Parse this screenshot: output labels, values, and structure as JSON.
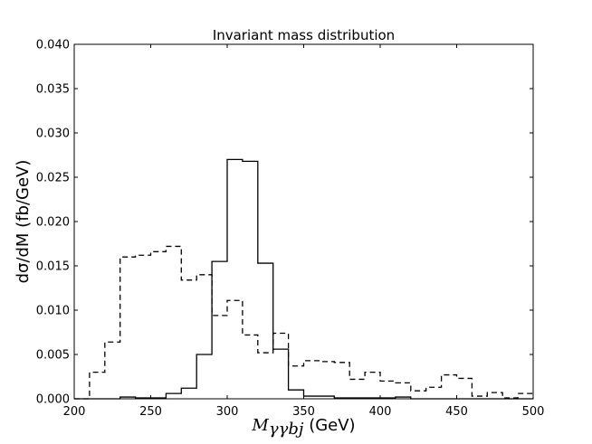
{
  "chart_data": {
    "type": "line",
    "style": "step-histogram",
    "title": "Invariant mass distribution",
    "xlabel_math": "M",
    "xlabel_subscript": "γγbj",
    "xlabel_unit": " (GeV)",
    "ylabel": "dσ/dM (fb/GeV)",
    "xlim": [
      200,
      500
    ],
    "ylim": [
      0,
      0.04
    ],
    "x_ticks": [
      200,
      250,
      300,
      350,
      400,
      450,
      500
    ],
    "x_tick_labels": [
      "200",
      "250",
      "300",
      "350",
      "400",
      "450",
      "500"
    ],
    "y_ticks": [
      0,
      0.005,
      0.01,
      0.015,
      0.02,
      0.025,
      0.03,
      0.035,
      0.04
    ],
    "y_tick_labels": [
      "0.000",
      "0.005",
      "0.010",
      "0.015",
      "0.020",
      "0.025",
      "0.030",
      "0.035",
      "0.040"
    ],
    "bin_edges": [
      200,
      210,
      220,
      230,
      240,
      250,
      260,
      270,
      280,
      290,
      300,
      310,
      320,
      330,
      340,
      350,
      360,
      370,
      380,
      390,
      400,
      410,
      420,
      430,
      440,
      450,
      460,
      470,
      480,
      490,
      500
    ],
    "series": [
      {
        "name": "solid",
        "line_style": "solid",
        "color": "#000000",
        "values": [
          0.0,
          0.0,
          0.0,
          0.0002,
          0.0001,
          0.0001,
          0.0006,
          0.0012,
          0.005,
          0.0155,
          0.027,
          0.0268,
          0.0153,
          0.0056,
          0.001,
          0.0003,
          0.0003,
          0.0001,
          0.0001,
          0.0001,
          0.0001,
          0.0002,
          0.0,
          0.0,
          0.0,
          0.0,
          0.0,
          0.0,
          0.0,
          0.0
        ]
      },
      {
        "name": "dashed",
        "line_style": "dashed",
        "color": "#000000",
        "values": [
          0.0,
          0.003,
          0.0064,
          0.016,
          0.0162,
          0.0166,
          0.0172,
          0.0134,
          0.014,
          0.0094,
          0.0111,
          0.0072,
          0.0052,
          0.0074,
          0.0037,
          0.0043,
          0.0042,
          0.0041,
          0.0022,
          0.003,
          0.002,
          0.0018,
          0.0009,
          0.0013,
          0.0027,
          0.0023,
          0.0003,
          0.0007,
          0.0001,
          0.0006
        ]
      }
    ]
  }
}
